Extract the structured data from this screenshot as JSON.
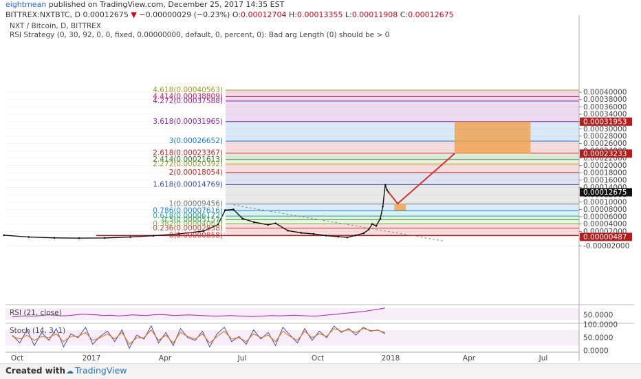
{
  "header": {
    "author": "eightmean",
    "published_text": "published on TradingView.com, December 25, 2017 14:35 EST",
    "symbol": "BITTREX:NXTBTC, D",
    "price": "0.00012675",
    "change_arrow": "▼",
    "change": "−0.00000029 (−0.23%)",
    "o_label": "O:",
    "o_value": "0.00012704",
    "h_label": "H:",
    "h_value": "0.00013355",
    "l_label": "L:",
    "l_value": "0.00011908",
    "c_label": "C:",
    "c_value": "0.00012675"
  },
  "chart_overlay": {
    "pair_title": "NXT / Bitcoin, D, BITTREX",
    "strategy_text": "RSI Strategy (0, 30, 92, 0, 0, fixed, 0.00000000, default, 0, percent, 0): Bad arg Length (0) should be > 0"
  },
  "chart_data": [
    {
      "type": "line",
      "title": "NXT / Bitcoin, D, BITTREX",
      "x_tick_labels": [
        "Oct",
        "2017",
        "Apr",
        "Jul",
        "Oct",
        "2018",
        "Apr",
        "Jul"
      ],
      "y_tick_labels": [
        "0.00040000",
        "0.00038000",
        "0.00036000",
        "0.00034000",
        "0.00032000",
        "0.00030000",
        "0.00028000",
        "0.00026000",
        "0.00024000",
        "0.00022000",
        "0.00020000",
        "0.00018000",
        "0.00016000",
        "0.00014000",
        "0.00012000",
        "0.00010000",
        "0.00008000",
        "0.00006000",
        "0.00004000",
        "0.00002000",
        "0.00000000",
        "-0.00002000"
      ],
      "ylim": [
        -2e-05,
        0.00041
      ],
      "price_series": {
        "name": "NXT / Bitcoin",
        "x": [
          "2016-09-15",
          "2016-10-15",
          "2016-11-15",
          "2016-12-15",
          "2017-01-15",
          "2017-02-15",
          "2017-03-15",
          "2017-04-15",
          "2017-05-15",
          "2017-06-01",
          "2017-06-10",
          "2017-06-20",
          "2017-07-01",
          "2017-07-15",
          "2017-08-01",
          "2017-08-10",
          "2017-08-25",
          "2017-09-10",
          "2017-09-25",
          "2017-10-10",
          "2017-10-25",
          "2017-11-05",
          "2017-11-15",
          "2017-11-25",
          "2017-12-01",
          "2017-12-05",
          "2017-12-10",
          "2017-12-15",
          "2017-12-18",
          "2017-12-21",
          "2017-12-23",
          "2017-12-25"
        ],
        "values": [
          9.5e-06,
          4.5e-06,
          2.2e-06,
          1.5e-06,
          2e-06,
          4.5e-06,
          8e-06,
          1.3e-05,
          2.1e-05,
          3.8e-05,
          7.8e-05,
          8e-05,
          5.5e-05,
          4.5e-05,
          3.8e-05,
          4.2e-05,
          2.2e-05,
          1.6e-05,
          1.3e-05,
          8.5e-06,
          5.5e-06,
          3.5e-06,
          9e-06,
          1.5e-05,
          2.5e-05,
          4e-05,
          3.5e-05,
          5.5e-05,
          8.8e-05,
          0.000147,
          0.000133,
          0.00012675
        ]
      },
      "forecast_line": {
        "x": [
          "2017-12-25",
          "2018-01-05",
          "2018-03-15"
        ],
        "values": [
          0.00012675,
          9.55e-05,
          0.00023233
        ]
      },
      "forecast_boxes": [
        {
          "x_start": "2018-01-01",
          "x_end": "2018-01-15",
          "y_low": 7.7e-05,
          "y_high": 9.56e-05
        },
        {
          "x_start": "2018-03-15",
          "x_end": "2018-06-15",
          "y_low": 0.00023233,
          "y_high": 0.00031953
        }
      ],
      "trend_line": {
        "x": [
          "2017-06-20",
          "2018-03-01"
        ],
        "values": [
          9.2e-05,
          -6e-06
        ]
      },
      "fib_levels": [
        {
          "ratio": 0,
          "value": 8.58e-06,
          "label": "0(0.00000858)",
          "color": "#d32f2f"
        },
        {
          "ratio": 0.236,
          "value": 2.838e-05,
          "label": "0.236(0.00002838)",
          "color": "#e53935"
        },
        {
          "ratio": 0.382,
          "value": 4.063e-05,
          "label": "0.382(0.00004063)",
          "color": "#7cb342"
        },
        {
          "ratio": 0.5,
          "value": 5.157e-05,
          "label": "0.5(0.00005157)",
          "color": "#43a047"
        },
        {
          "ratio": 0.618,
          "value": 6.172e-05,
          "label": "0.618(0.00006172)",
          "color": "#26a69a"
        },
        {
          "ratio": 0.786,
          "value": 7.616e-05,
          "label": "0.786(0.00007616)",
          "color": "#1e88e5"
        },
        {
          "ratio": 1,
          "value": 9.456e-05,
          "label": "1(0.00009456)",
          "color": "#757575"
        },
        {
          "ratio": 1.618,
          "value": 0.00014769,
          "label": "1.618(0.00014769)",
          "color": "#3949ab"
        },
        {
          "ratio": 2,
          "value": 0.00018054,
          "label": "2(0.00018054)",
          "color": "#c62828"
        },
        {
          "ratio": 2.272,
          "value": 0.00020392,
          "label": "2.272(0.00020392)",
          "color": "#9e9d24"
        },
        {
          "ratio": 2.414,
          "value": 0.00021613,
          "label": "2.414(0.00021613)",
          "color": "#2e7d32"
        },
        {
          "ratio": 2.618,
          "value": 0.00023367,
          "label": "2.618(0.00023367)",
          "color": "#c62828"
        },
        {
          "ratio": 3,
          "value": 0.00026652,
          "label": "3(0.00026652)",
          "color": "#1976d2"
        },
        {
          "ratio": 3.618,
          "value": 0.00031965,
          "label": "3.618(0.00031965)",
          "color": "#8e24aa"
        },
        {
          "ratio": 4.272,
          "value": 0.00037588,
          "label": "4.272(0.00037588)",
          "color": "#8e24aa"
        },
        {
          "ratio": 4.414,
          "value": 0.00038809,
          "label": "4.414(0.00038809)",
          "color": "#c2185b"
        },
        {
          "ratio": 4.618,
          "value": 0.00040563,
          "label": "4.618(0.00040563)",
          "color": "#9e9d24"
        }
      ],
      "price_flags": [
        {
          "value": 0.00031953,
          "label": "0.00031953",
          "color": "#b71c1c"
        },
        {
          "value": 0.00023233,
          "label": "0.00023233",
          "color": "#b71c1c"
        },
        {
          "value": 0.00012675,
          "label": "0.00012675",
          "color": "#111111"
        },
        {
          "value": 4.87e-06,
          "label": "0.00000487",
          "color": "#b71c1c"
        }
      ]
    },
    {
      "type": "line",
      "title": "RSI (21, close)",
      "y_tick_labels": [
        "50.0000"
      ],
      "ylim": [
        30,
        75
      ],
      "series": [
        {
          "name": "RSI",
          "values": [
            44,
            46,
            47,
            46,
            48,
            50,
            49,
            47,
            48,
            50,
            52,
            51,
            50,
            48,
            49,
            47,
            48,
            50,
            49,
            48,
            50,
            51,
            50,
            48,
            49,
            50,
            49,
            48,
            47,
            46,
            47,
            48,
            47,
            46,
            45,
            46,
            47,
            48,
            47,
            48,
            49,
            48,
            47,
            46,
            48,
            50,
            52,
            54,
            56,
            58,
            60,
            63,
            66,
            70
          ]
        }
      ]
    },
    {
      "type": "line",
      "title": "Stoch (14, 3, 1)",
      "y_tick_labels": [
        "100.0000",
        "50.0000",
        "0.0000"
      ],
      "ylim": [
        0,
        100
      ],
      "series": [
        {
          "name": "%K",
          "values": [
            60,
            30,
            80,
            20,
            70,
            40,
            85,
            15,
            65,
            50,
            90,
            25,
            55,
            75,
            35,
            80,
            10,
            60,
            45,
            95,
            30,
            70,
            20,
            85,
            50,
            40,
            75,
            15,
            65,
            90,
            35,
            55,
            25,
            80,
            45,
            70,
            20,
            90,
            60,
            30,
            85,
            40,
            75,
            50,
            95,
            70,
            85,
            60,
            90,
            75,
            80,
            65
          ]
        },
        {
          "name": "%D",
          "values": [
            55,
            45,
            60,
            40,
            55,
            50,
            65,
            35,
            55,
            55,
            70,
            40,
            50,
            65,
            45,
            70,
            25,
            50,
            50,
            80,
            40,
            60,
            30,
            70,
            55,
            45,
            65,
            30,
            55,
            75,
            45,
            50,
            35,
            65,
            50,
            60,
            35,
            75,
            55,
            40,
            75,
            50,
            65,
            55,
            85,
            75,
            80,
            70,
            85,
            78,
            78,
            70
          ]
        }
      ]
    }
  ],
  "footer": {
    "created_with": "Created with",
    "brand": "TradingView"
  }
}
